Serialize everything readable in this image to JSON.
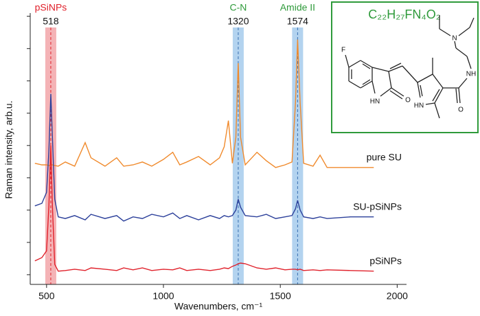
{
  "chart_data": {
    "type": "line",
    "x_label": "Wavenumbers, cm⁻¹",
    "y_label": "Raman intensity, arb.u.",
    "x": [
      450,
      480,
      500,
      510,
      518,
      525,
      535,
      550,
      580,
      620,
      665,
      690,
      750,
      800,
      830,
      870,
      910,
      950,
      1000,
      1040,
      1070,
      1100,
      1150,
      1200,
      1240,
      1260,
      1278,
      1295,
      1310,
      1320,
      1330,
      1350,
      1400,
      1440,
      1480,
      1520,
      1550,
      1565,
      1574,
      1585,
      1600,
      1640,
      1670,
      1700,
      1800,
      1900
    ],
    "series": [
      {
        "name": "pure SU",
        "color": "#f08a2c",
        "values": [
          3.45,
          3.4,
          3.4,
          3.38,
          3.4,
          3.4,
          3.38,
          3.36,
          3.49,
          3.36,
          4.09,
          3.62,
          3.36,
          3.62,
          3.36,
          3.4,
          3.49,
          3.36,
          3.57,
          3.79,
          3.4,
          3.49,
          3.66,
          3.4,
          3.62,
          3.96,
          4.77,
          3.45,
          4.26,
          6.55,
          4.26,
          3.4,
          3.79,
          3.53,
          3.32,
          3.4,
          3.49,
          5.32,
          7.28,
          5.32,
          3.45,
          3.36,
          3.7,
          3.32,
          3.32,
          3.32
        ]
      },
      {
        "name": "SU-pSiNPs",
        "color": "#2b3f9a",
        "values": [
          2.13,
          2.21,
          2.55,
          3.83,
          5.6,
          4.26,
          2.34,
          1.79,
          1.74,
          1.83,
          1.7,
          1.87,
          1.74,
          1.83,
          1.66,
          1.79,
          1.74,
          1.87,
          1.79,
          1.91,
          1.74,
          1.83,
          1.7,
          1.83,
          1.74,
          1.83,
          1.79,
          1.83,
          2.0,
          2.34,
          2.09,
          1.83,
          1.79,
          1.87,
          1.74,
          1.79,
          1.83,
          2.04,
          2.3,
          2.0,
          1.79,
          1.74,
          1.79,
          1.74,
          1.79,
          1.79
        ]
      },
      {
        "name": "pSiNPs",
        "color": "#e0202a",
        "values": [
          0.43,
          0.53,
          0.74,
          2.13,
          4.0,
          2.13,
          0.32,
          0.11,
          0.13,
          0.17,
          0.13,
          0.21,
          0.17,
          0.13,
          0.21,
          0.15,
          0.21,
          0.13,
          0.17,
          0.15,
          0.21,
          0.13,
          0.17,
          0.13,
          0.17,
          0.21,
          0.19,
          0.26,
          0.3,
          0.34,
          0.36,
          0.34,
          0.21,
          0.17,
          0.21,
          0.15,
          0.17,
          0.17,
          0.15,
          0.17,
          0.13,
          0.15,
          0.13,
          0.15,
          0.13,
          0.11
        ]
      }
    ],
    "xlim": [
      430,
      2040
    ],
    "xticks": [
      500,
      1000,
      1500,
      2000
    ],
    "ylim": [
      -0.3,
      8.1
    ],
    "yticks": [
      0,
      1,
      2,
      3,
      4,
      5,
      6,
      7,
      8
    ],
    "annotations": [
      {
        "x": 518,
        "label": "pSiNPs",
        "color": "#e0202a",
        "band_color": "#f4b3b6"
      },
      {
        "x": 1320,
        "label": "C-N",
        "color": "#2e9a3a",
        "band_color": "#b3d3ef"
      },
      {
        "x": 1574,
        "label": "Amide II",
        "color": "#2e9a3a",
        "band_color": "#b3d3ef"
      }
    ]
  },
  "inset": {
    "formula": "C₂₂H₂₇FN₄O₂",
    "atom_labels": [
      "F",
      "HN",
      "O",
      "HN",
      "O",
      "NH",
      "N"
    ]
  }
}
